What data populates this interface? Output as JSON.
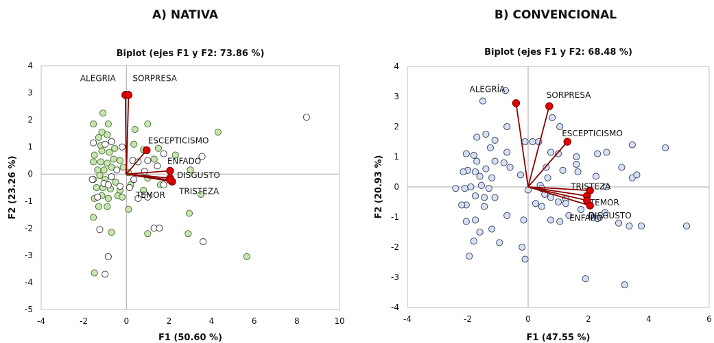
{
  "panels": [
    {
      "title": "A) NATIVA"
    },
    {
      "title": "B) CONVENCIONAL"
    }
  ],
  "chart_data": [
    {
      "type": "scatter",
      "subtype": "biplot",
      "title": "Biplot (ejes F1 y F2: 73.86 %)",
      "xlabel": "F1 (50.60 %)",
      "ylabel": "F2 (23.26 %)",
      "xlim": [
        -4,
        10
      ],
      "ylim": [
        -5,
        4
      ],
      "xticks": [
        -4,
        -2,
        0,
        2,
        4,
        6,
        8,
        10
      ],
      "yticks": [
        -5,
        -4,
        -3,
        -2,
        -1,
        0,
        1,
        2,
        3,
        4
      ],
      "grid": false,
      "legend": "none",
      "colors": {
        "green_points": "#c9e3b1",
        "white_points": "#ffffff",
        "vectors": "#8b0000",
        "vector_heads": "#e00000",
        "axis_lines": "#a6a6a6"
      },
      "vectors": [
        {
          "label": "ALEGRIA",
          "x": -0.05,
          "y": 2.92
        },
        {
          "label": "SORPRESA",
          "x": 0.1,
          "y": 2.92
        },
        {
          "label": "ESCEPTICISMO",
          "x": 0.95,
          "y": 0.88
        },
        {
          "label": "ENFADO",
          "x": 2.05,
          "y": 0.12
        },
        {
          "label": "DISGUSTO",
          "x": 2.05,
          "y": -0.15
        },
        {
          "label": "TRISTEZA",
          "x": 2.15,
          "y": -0.28
        },
        {
          "label": "TEMOR",
          "x": 2.05,
          "y": -0.22
        }
      ],
      "points_green": [
        [
          -1.1,
          2.25
        ],
        [
          -1.55,
          1.85
        ],
        [
          -1.15,
          1.55
        ],
        [
          -0.85,
          1.85
        ],
        [
          -1.3,
          1.35
        ],
        [
          -0.9,
          1.45
        ],
        [
          -1.2,
          1.05
        ],
        [
          -1.5,
          0.7
        ],
        [
          -1.15,
          0.85
        ],
        [
          -0.8,
          0.8
        ],
        [
          -0.55,
          0.95
        ],
        [
          -1.55,
          0.45
        ],
        [
          -1.2,
          0.45
        ],
        [
          -0.9,
          0.4
        ],
        [
          -0.6,
          0.55
        ],
        [
          -0.3,
          0.5
        ],
        [
          -1.35,
          0.15
        ],
        [
          -1.05,
          0.15
        ],
        [
          -0.7,
          0.25
        ],
        [
          -0.15,
          0.25
        ],
        [
          0.1,
          0.05
        ],
        [
          -1.55,
          -0.2
        ],
        [
          -1.25,
          -0.05
        ],
        [
          -1.0,
          -0.2
        ],
        [
          -0.5,
          -0.3
        ],
        [
          -1.4,
          -0.5
        ],
        [
          -1.1,
          -0.5
        ],
        [
          -0.75,
          -0.55
        ],
        [
          -0.3,
          -0.6
        ],
        [
          -1.5,
          -0.9
        ],
        [
          -1.15,
          -0.8
        ],
        [
          -0.85,
          -0.9
        ],
        [
          -0.4,
          -0.8
        ],
        [
          -1.3,
          -1.2
        ],
        [
          -0.9,
          -1.2
        ],
        [
          -1.55,
          -1.6
        ],
        [
          -0.7,
          -2.15
        ],
        [
          -1.5,
          -3.65
        ],
        [
          0.1,
          -1.3
        ],
        [
          0.4,
          1.65
        ],
        [
          1.0,
          1.85
        ],
        [
          0.35,
          1.1
        ],
        [
          0.8,
          0.9
        ],
        [
          1.5,
          0.95
        ],
        [
          1.3,
          0.55
        ],
        [
          2.3,
          0.7
        ],
        [
          1.0,
          -0.15
        ],
        [
          1.6,
          -0.4
        ],
        [
          0.8,
          -0.6
        ],
        [
          3.5,
          -0.75
        ],
        [
          1.0,
          -2.2
        ],
        [
          2.95,
          -1.45
        ],
        [
          2.9,
          -2.2
        ],
        [
          4.3,
          1.55
        ],
        [
          5.65,
          -3.05
        ],
        [
          -0.2,
          -0.85
        ],
        [
          3.0,
          0.15
        ],
        [
          0.2,
          -0.4
        ]
      ],
      "points_white": [
        [
          -1.55,
          1.15
        ],
        [
          -1.0,
          1.1
        ],
        [
          -0.7,
          1.2
        ],
        [
          -0.2,
          1.0
        ],
        [
          -0.45,
          0.15
        ],
        [
          -1.05,
          -0.35
        ],
        [
          -1.6,
          -0.2
        ],
        [
          -0.7,
          -0.1
        ],
        [
          -0.85,
          -0.4
        ],
        [
          0.3,
          0.5
        ],
        [
          0.55,
          0.45
        ],
        [
          1.0,
          0.5
        ],
        [
          1.45,
          0.3
        ],
        [
          0.35,
          -0.2
        ],
        [
          0.15,
          -0.5
        ],
        [
          1.0,
          -0.85
        ],
        [
          1.75,
          -0.4
        ],
        [
          0.55,
          -0.9
        ],
        [
          1.3,
          -2.0
        ],
        [
          1.55,
          -2.0
        ],
        [
          3.6,
          -2.5
        ],
        [
          -0.85,
          -3.05
        ],
        [
          -1.0,
          -3.7
        ],
        [
          -1.25,
          -2.05
        ],
        [
          3.55,
          0.65
        ],
        [
          8.45,
          2.1
        ],
        [
          -1.35,
          -0.85
        ],
        [
          -0.3,
          -0.45
        ],
        [
          0.85,
          0.1
        ],
        [
          1.75,
          0.75
        ]
      ]
    },
    {
      "type": "scatter",
      "subtype": "biplot",
      "title": "Biplot (ejes F1 y F2: 68.48 %)",
      "xlabel": "F1 (47.55 %)",
      "ylabel": "F2 (20.93 %)",
      "xlim": [
        -4,
        6
      ],
      "ylim": [
        -4,
        4
      ],
      "xticks": [
        -4,
        -2,
        0,
        2,
        4,
        6
      ],
      "yticks": [
        -4,
        -3,
        -2,
        -1,
        0,
        1,
        2,
        3,
        4
      ],
      "grid": false,
      "legend": "none",
      "colors": {
        "blue_points": "#d6e0f5",
        "vectors": "#8b0000",
        "vector_heads": "#e00000",
        "axis_lines": "#a6a6a6"
      },
      "vectors": [
        {
          "label": "ALEGRÍA",
          "x": -0.4,
          "y": 2.78
        },
        {
          "label": "SORPRESA",
          "x": 0.7,
          "y": 2.68
        },
        {
          "label": "ESCEPTICISMO",
          "x": 1.3,
          "y": 1.5
        },
        {
          "label": "TRISTEZA",
          "x": 2.05,
          "y": -0.12
        },
        {
          "label": "TEMOR",
          "x": 1.95,
          "y": -0.3
        },
        {
          "label": "DISGUSTO",
          "x": 1.95,
          "y": -0.45
        },
        {
          "label": "ENFADO",
          "x": 2.05,
          "y": -0.62
        }
      ],
      "points_blue": [
        [
          -0.75,
          3.2
        ],
        [
          -1.5,
          2.85
        ],
        [
          -0.7,
          2.0
        ],
        [
          -0.7,
          1.15
        ],
        [
          -1.4,
          1.75
        ],
        [
          -1.7,
          1.65
        ],
        [
          -1.1,
          1.55
        ],
        [
          -1.25,
          1.3
        ],
        [
          -1.8,
          1.05
        ],
        [
          -2.05,
          1.1
        ],
        [
          -1.7,
          0.85
        ],
        [
          -1.1,
          0.85
        ],
        [
          -0.8,
          0.8
        ],
        [
          -1.4,
          0.6
        ],
        [
          -2.0,
          0.55
        ],
        [
          -1.75,
          0.5
        ],
        [
          -0.6,
          0.65
        ],
        [
          -2.15,
          0.5
        ],
        [
          -1.6,
          0.35
        ],
        [
          -1.2,
          0.3
        ],
        [
          -0.25,
          0.4
        ],
        [
          -0.1,
          1.5
        ],
        [
          0.15,
          1.5
        ],
        [
          -1.9,
          0.0
        ],
        [
          -1.55,
          0.05
        ],
        [
          -1.3,
          -0.05
        ],
        [
          -2.1,
          -0.05
        ],
        [
          -2.4,
          -0.05
        ],
        [
          -1.75,
          -0.3
        ],
        [
          -1.45,
          -0.35
        ],
        [
          -1.1,
          -0.35
        ],
        [
          -2.05,
          -0.6
        ],
        [
          -2.2,
          -0.6
        ],
        [
          -1.45,
          -0.65
        ],
        [
          -1.75,
          -1.1
        ],
        [
          -2.05,
          -1.15
        ],
        [
          -0.7,
          -0.95
        ],
        [
          -1.6,
          -1.5
        ],
        [
          -1.2,
          -1.4
        ],
        [
          -1.8,
          -1.8
        ],
        [
          -1.95,
          -2.3
        ],
        [
          -0.95,
          -1.85
        ],
        [
          -0.15,
          -1.1
        ],
        [
          -0.2,
          -2.0
        ],
        [
          -0.1,
          -2.4
        ],
        [
          0.8,
          2.3
        ],
        [
          1.05,
          2.0
        ],
        [
          0.35,
          1.5
        ],
        [
          0.75,
          1.15
        ],
        [
          1.0,
          1.1
        ],
        [
          1.6,
          1.0
        ],
        [
          0.6,
          0.65
        ],
        [
          1.15,
          0.55
        ],
        [
          1.65,
          0.5
        ],
        [
          0.65,
          0.3
        ],
        [
          0.4,
          0.05
        ],
        [
          0.0,
          -0.1
        ],
        [
          0.55,
          -0.25
        ],
        [
          0.45,
          -0.65
        ],
        [
          0.75,
          -0.35
        ],
        [
          0.25,
          -0.55
        ],
        [
          1.25,
          -0.4
        ],
        [
          1.0,
          -0.5
        ],
        [
          1.75,
          -0.75
        ],
        [
          1.35,
          -0.95
        ],
        [
          1.05,
          -1.15
        ],
        [
          0.75,
          -1.1
        ],
        [
          2.55,
          -0.85
        ],
        [
          2.3,
          -1.05
        ],
        [
          2.6,
          0.0
        ],
        [
          2.6,
          1.15
        ],
        [
          2.3,
          1.1
        ],
        [
          3.45,
          1.4
        ],
        [
          3.45,
          0.3
        ],
        [
          3.1,
          0.65
        ],
        [
          3.6,
          0.4
        ],
        [
          4.55,
          1.3
        ],
        [
          3.0,
          -1.2
        ],
        [
          3.35,
          -1.3
        ],
        [
          3.75,
          -1.3
        ],
        [
          5.25,
          -1.3
        ],
        [
          2.25,
          0.35
        ],
        [
          1.6,
          0.75
        ],
        [
          1.25,
          -0.55
        ],
        [
          1.9,
          -3.05
        ],
        [
          3.2,
          -3.25
        ],
        [
          2.1,
          -0.95
        ],
        [
          0.45,
          -0.05
        ]
      ]
    }
  ]
}
